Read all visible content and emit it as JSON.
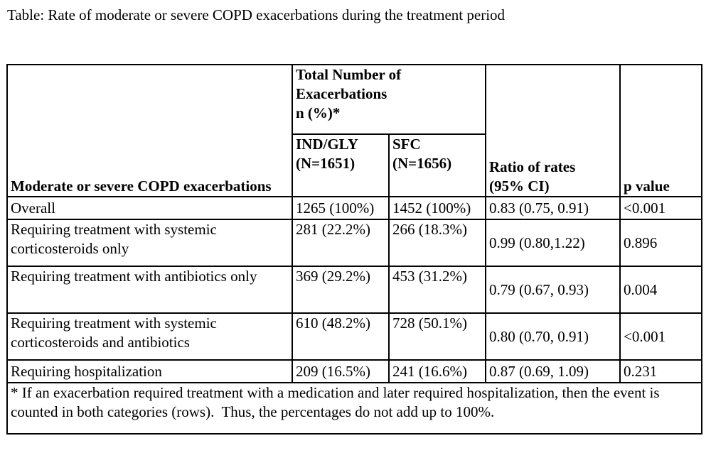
{
  "caption": "Table: Rate of moderate or severe COPD exacerbations during the treatment period",
  "table": {
    "header": {
      "row_label": "Moderate or severe COPD exacerbations",
      "group_label_line1": "Total Number of",
      "group_label_line2": "Exacerbations",
      "group_label_line3": "n (%)*",
      "col1_name": "IND/GLY",
      "col1_n": "(N=1651)",
      "col2_name": "SFC",
      "col2_n": "(N=1656)",
      "ratio_line1": "Ratio of rates",
      "ratio_line2": "(95% CI)",
      "pvalue": "p value"
    },
    "rows": [
      {
        "label": "Overall",
        "ind_gly": "1265 (100%)",
        "sfc": "1452 (100%)",
        "ratio": "0.83 (0.75, 0.91)",
        "p": "<0.001"
      },
      {
        "label": "Requiring treatment with systemic corticosteroids only",
        "ind_gly": "281 (22.2%)",
        "sfc": "266 (18.3%)",
        "ratio": "0.99 (0.80,1.22)",
        "p": "0.896"
      },
      {
        "label": "Requiring treatment with antibiotics only",
        "ind_gly": "369 (29.2%)",
        "sfc": "453 (31.2%)",
        "ratio": "0.79 (0.67, 0.93)",
        "p": "0.004"
      },
      {
        "label": "Requiring treatment with systemic corticosteroids and antibiotics",
        "ind_gly": "610 (48.2%)",
        "sfc": "728 (50.1%)",
        "ratio": "0.80 (0.70, 0.91)",
        "p": "<0.001"
      },
      {
        "label": "Requiring hospitalization",
        "ind_gly": "209 (16.5%)",
        "sfc": "241 (16.6%)",
        "ratio": "0.87 (0.69, 1.09)",
        "p": "0.231"
      }
    ],
    "footnote": "* If an exacerbation required treatment with a medication and later required hospitalization, then the event is counted in both categories (rows).  Thus, the percentages do not add up to 100%."
  }
}
